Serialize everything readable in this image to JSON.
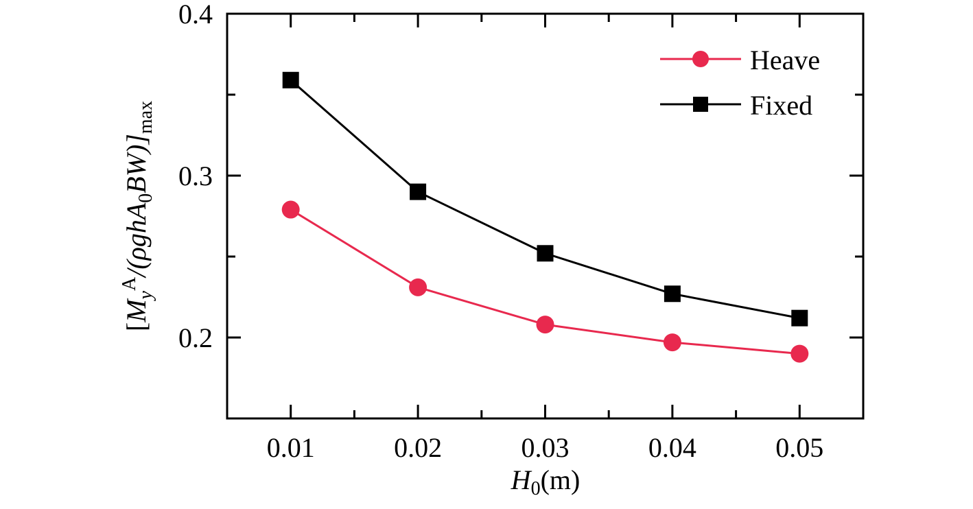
{
  "chart_data": {
    "type": "line",
    "x": [
      0.01,
      0.02,
      0.03,
      0.04,
      0.05
    ],
    "x_tick_labels": [
      "0.01",
      "0.02",
      "0.03",
      "0.04",
      "0.05"
    ],
    "y_tick_labels": [
      "0.2",
      "0.3",
      "0.4"
    ],
    "y_ticks": [
      0.2,
      0.3,
      0.4
    ],
    "y_minor_ticks": [
      0.15,
      0.25,
      0.35
    ],
    "x_minor_ticks": [
      0.015,
      0.025,
      0.035,
      0.045
    ],
    "xlim": [
      0.005,
      0.055
    ],
    "ylim": [
      0.15,
      0.4
    ],
    "grid": false,
    "legend_position": "top-right",
    "xlabel": {
      "main": "H",
      "sub": "0",
      "unit": "(m)"
    },
    "ylabel": {
      "bracket_open": "[",
      "M": "M",
      "M_sub": "y",
      "M_sup": "A",
      "mid": "/(ρghA",
      "A_sub": "0",
      "tail": "BW)]",
      "outer_sub": "max"
    },
    "series": [
      {
        "name": "Heave",
        "color": "#E8294E",
        "marker": "circle",
        "values": [
          0.279,
          0.231,
          0.208,
          0.197,
          0.19
        ]
      },
      {
        "name": "Fixed",
        "color": "#000000",
        "marker": "square",
        "values": [
          0.359,
          0.29,
          0.252,
          0.227,
          0.212
        ]
      }
    ]
  }
}
